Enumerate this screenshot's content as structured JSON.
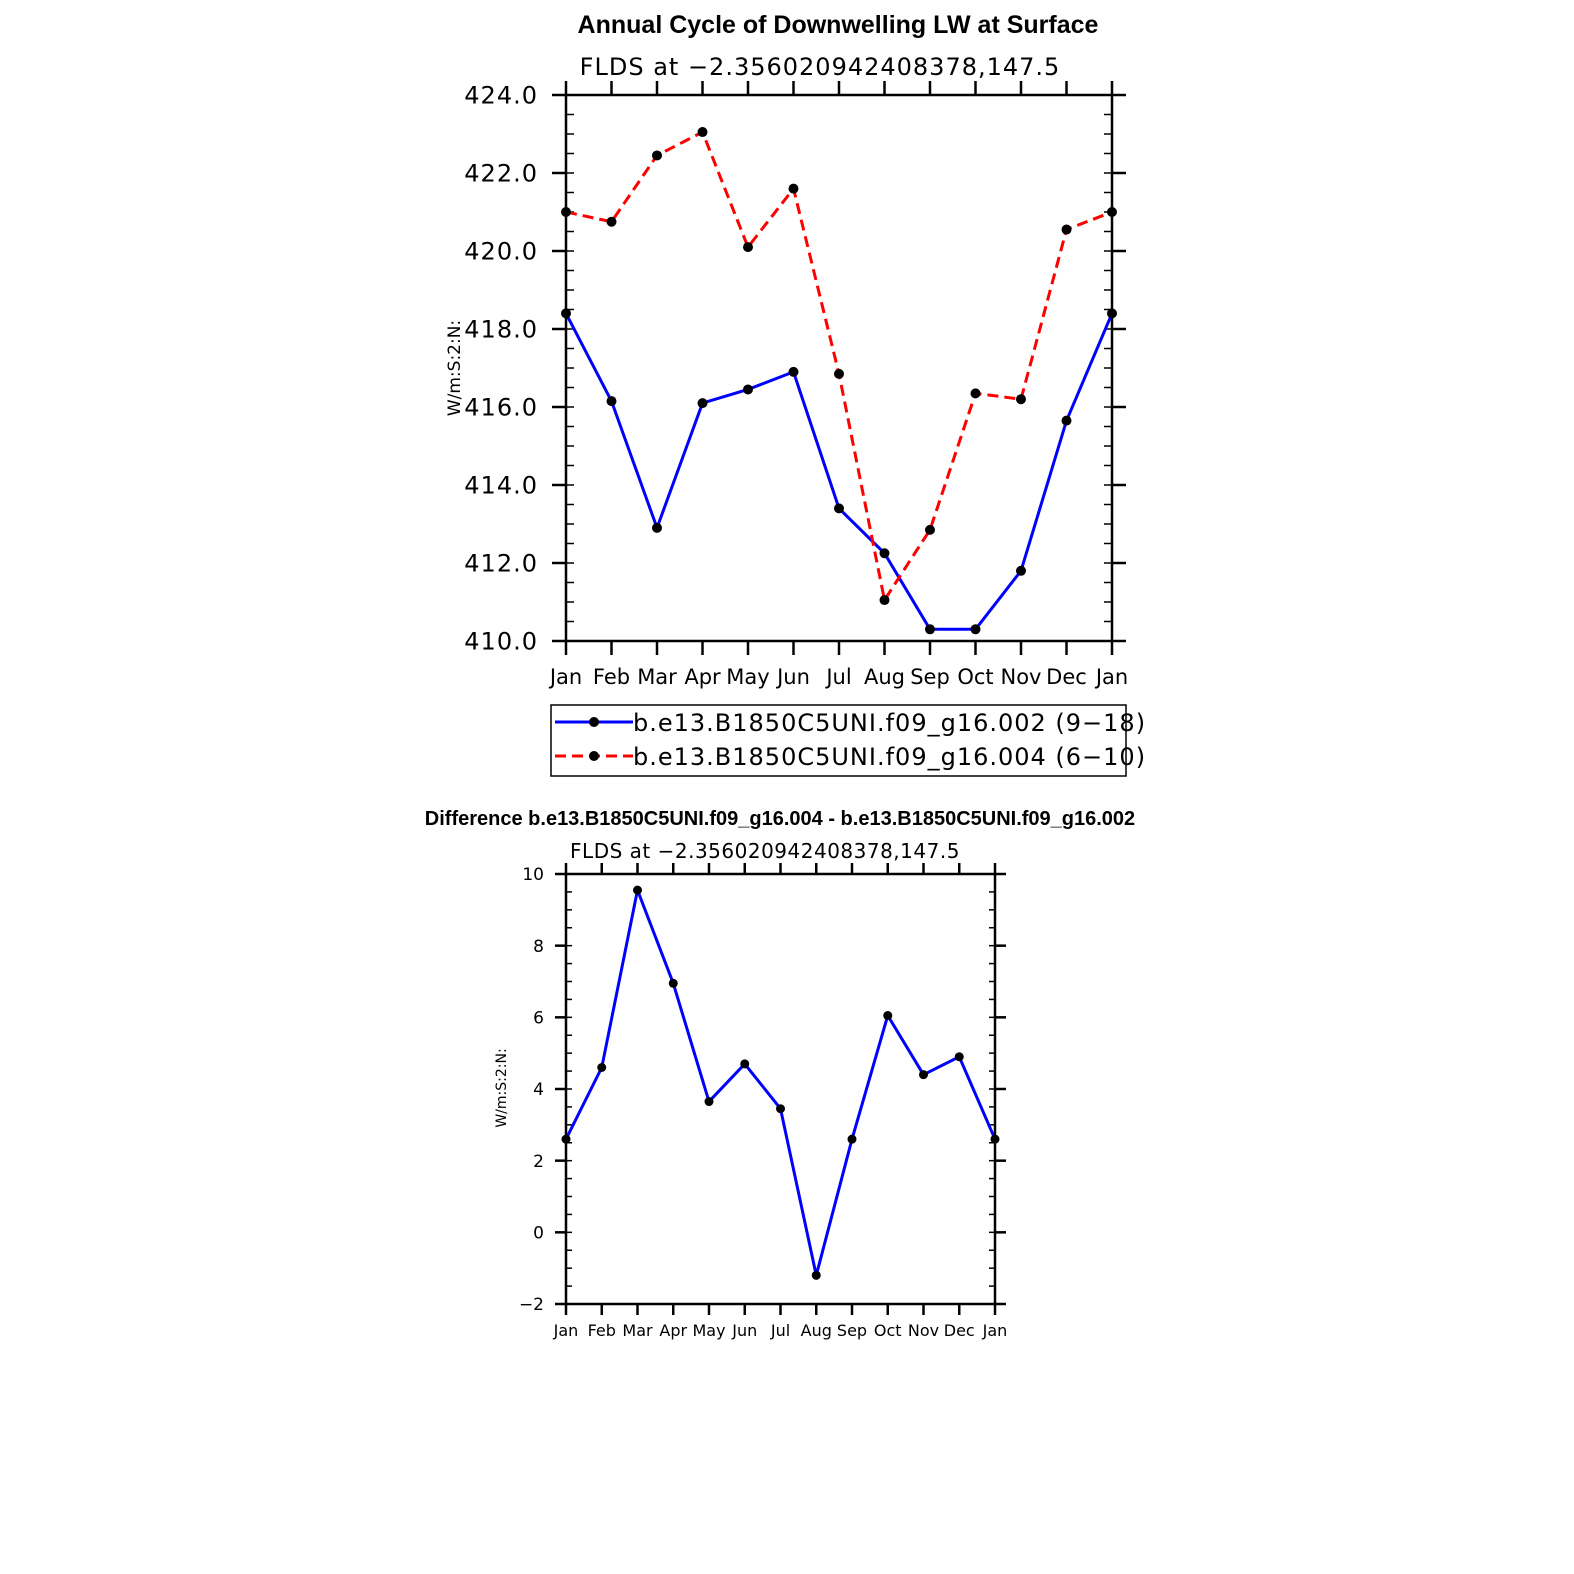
{
  "chart_data": [
    {
      "type": "line",
      "title": "Annual Cycle of Downwelling LW at Surface",
      "subtitle": "FLDS at −2.356020942408378,147.5",
      "ylabel": "W/m:S:2:N:",
      "categories": [
        "Jan",
        "Feb",
        "Mar",
        "Apr",
        "May",
        "Jun",
        "Jul",
        "Aug",
        "Sep",
        "Oct",
        "Nov",
        "Dec",
        "Jan"
      ],
      "ylim": [
        410,
        424
      ],
      "yticks": [
        410,
        412,
        414,
        416,
        418,
        420,
        422,
        424
      ],
      "ytick_labels": [
        "410.0",
        "412.0",
        "414.0",
        "416.0",
        "418.0",
        "420.0",
        "422.0",
        "424.0"
      ],
      "legend_position": "bottom",
      "series": [
        {
          "name": "b.e13.B1850C5UNI.f09_g16.002 (9−18)",
          "color": "#0000ff",
          "dash": "solid",
          "values": [
            418.4,
            416.15,
            412.9,
            416.1,
            416.45,
            416.9,
            413.4,
            412.25,
            410.3,
            410.3,
            411.8,
            415.65,
            418.4
          ]
        },
        {
          "name": "b.e13.B1850C5UNI.f09_g16.004 (6−10)",
          "color": "#ff0000",
          "dash": "dashed",
          "values": [
            421.0,
            420.75,
            422.45,
            423.05,
            420.1,
            421.6,
            416.85,
            411.05,
            412.85,
            416.35,
            416.2,
            420.55,
            421.0
          ]
        }
      ]
    },
    {
      "type": "line",
      "title": "Difference b.e13.B1850C5UNI.f09_g16.004 - b.e13.B1850C5UNI.f09_g16.002",
      "subtitle": "FLDS at −2.356020942408378,147.5",
      "ylabel": "W/m:S:2:N:",
      "categories": [
        "Jan",
        "Feb",
        "Mar",
        "Apr",
        "May",
        "Jun",
        "Jul",
        "Aug",
        "Sep",
        "Oct",
        "Nov",
        "Dec",
        "Jan"
      ],
      "ylim": [
        -2,
        10
      ],
      "yticks": [
        -2,
        0,
        2,
        4,
        6,
        8,
        10
      ],
      "ytick_labels": [
        "−2",
        "0",
        "2",
        "4",
        "6",
        "8",
        "10"
      ],
      "series": [
        {
          "name": "Difference",
          "color": "#0000ff",
          "dash": "solid",
          "values": [
            2.6,
            4.6,
            9.55,
            6.95,
            3.65,
            4.7,
            3.45,
            -1.2,
            2.6,
            6.05,
            4.4,
            4.9,
            2.6
          ]
        }
      ]
    }
  ]
}
